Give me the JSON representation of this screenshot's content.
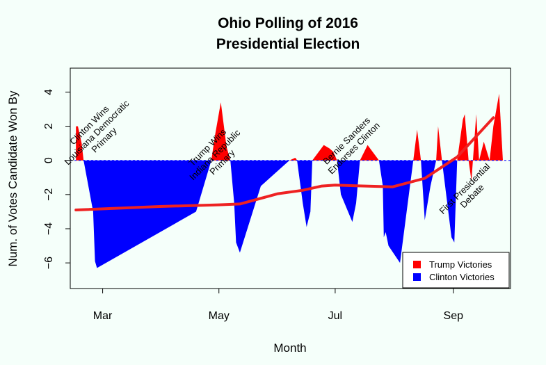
{
  "chart_data": {
    "type": "area",
    "title": [
      "Ohio Polling of 2016",
      "Presidential Election"
    ],
    "xlabel": "Month",
    "ylabel": "Num. of Votes Candidate Won By",
    "x_ticks": [
      {
        "label": "Mar",
        "x": 60
      },
      {
        "label": "May",
        "x": 121
      },
      {
        "label": "Jul",
        "x": 182
      },
      {
        "label": "Sep",
        "x": 244
      }
    ],
    "y_ticks": [
      -6,
      -4,
      -2,
      0,
      2,
      4
    ],
    "xlim": [
      43,
      274
    ],
    "ylim": [
      -7.5,
      5.4
    ],
    "grid": false,
    "colors": {
      "trump": "#ff0000",
      "clinton": "#0000ff",
      "trend": "#ee2222",
      "background": "#f5fffa"
    },
    "legend": {
      "placement": "bottom-right",
      "entries": [
        {
          "name": "Trump Victories",
          "color": "#ff0000"
        },
        {
          "name": "Clinton Victories",
          "color": "#0000ff"
        }
      ]
    },
    "series": [
      {
        "name": "Polling margin",
        "x": [
          46,
          47,
          49,
          50,
          55,
          56,
          57,
          109,
          117,
          119,
          122,
          125,
          127,
          129,
          130,
          132,
          143,
          158,
          161,
          161.5,
          162,
          165,
          167,
          169,
          170,
          176,
          179,
          181,
          183,
          185,
          191,
          193,
          195,
          199,
          205,
          207,
          207.5,
          208.5,
          210,
          216,
          223,
          225,
          227,
          229,
          232,
          235,
          236,
          238,
          243,
          244.5,
          246,
          249,
          250,
          252,
          253.5,
          256,
          257.5,
          260,
          263,
          265,
          268,
          270
        ],
        "y": [
          2.0,
          2.0,
          1.0,
          0,
          -3.0,
          -5.9,
          -6.3,
          -3.0,
          0,
          1.5,
          3.4,
          0.8,
          0,
          -2.5,
          -4.8,
          -5.4,
          -1.5,
          0,
          0.15,
          0.1,
          0,
          -2.5,
          -3.9,
          -3.0,
          0,
          0.9,
          0.7,
          0.5,
          0,
          -2.0,
          -3.6,
          -2.5,
          0,
          0.9,
          0,
          -1.5,
          -4.5,
          -4.2,
          -5.0,
          -6.0,
          0,
          1.8,
          0,
          -3.5,
          -1.5,
          0,
          2.0,
          0,
          -4.5,
          -4.8,
          0,
          2.4,
          2.7,
          0,
          -1.2,
          2.7,
          0,
          1.1,
          0,
          2.0,
          3.9,
          0
        ]
      },
      {
        "name": "Trend",
        "x": [
          46,
          90,
          121,
          132,
          152,
          165,
          175,
          182,
          212,
          229,
          246,
          265
        ],
        "y": [
          -2.9,
          -2.7,
          -2.6,
          -2.55,
          -1.95,
          -1.75,
          -1.5,
          -1.45,
          -1.55,
          -1.05,
          0.2,
          2.5
        ]
      }
    ],
    "annotations": [
      {
        "lines": [
          "Clinton Wins",
          "Louisiana Democratic",
          "Primary"
        ],
        "x": 58,
        "y": 1.5,
        "angle": 45
      },
      {
        "lines": [
          "Trump Wins",
          "Indiana Republic",
          "Primary"
        ],
        "x": 120,
        "y": 0.2,
        "angle": 45
      },
      {
        "lines": [
          "Bernie Sanders",
          "Endorses Clinton"
        ],
        "x": 191,
        "y": 0.8,
        "angle": 45
      },
      {
        "lines": [
          "First Presidential",
          "Debate"
        ],
        "x": 253,
        "y": -2.0,
        "angle": 45
      }
    ]
  }
}
